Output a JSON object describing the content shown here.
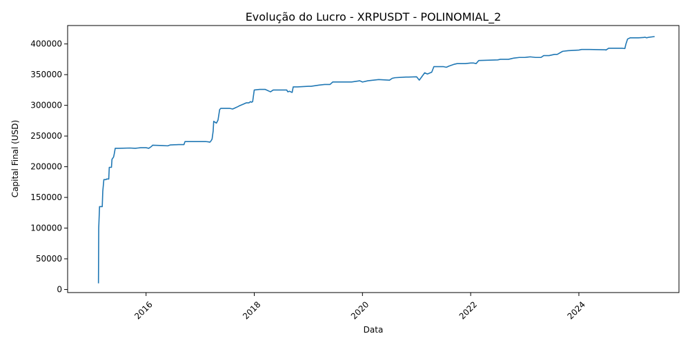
{
  "chart_data": {
    "type": "line",
    "title": "Evolução do Lucro - XRPUSDT - POLINOMIAL_2",
    "xlabel": "Data",
    "ylabel": "Capital Final (USD)",
    "xlim": [
      2014.55,
      2025.85
    ],
    "ylim": [
      -5000,
      430000
    ],
    "x_ticks": [
      2016,
      2018,
      2020,
      2022,
      2024
    ],
    "x_tick_labels": [
      "2016",
      "2018",
      "2020",
      "2022",
      "2024"
    ],
    "y_ticks": [
      0,
      50000,
      100000,
      150000,
      200000,
      250000,
      300000,
      350000,
      400000
    ],
    "y_tick_labels": [
      "0",
      "50000",
      "100000",
      "150000",
      "200000",
      "250000",
      "300000",
      "350000",
      "400000"
    ],
    "grid": false,
    "line_color": "#1f77b4",
    "series": [
      {
        "x": [
          2015.12,
          2015.125,
          2015.14,
          2015.19,
          2015.2,
          2015.22,
          2015.26,
          2015.27,
          2015.31,
          2015.32,
          2015.36,
          2015.37,
          2015.4,
          2015.41,
          2015.43,
          2015.5,
          2015.7,
          2015.8,
          2015.85,
          2015.9,
          2016.0,
          2016.05,
          2016.1,
          2016.12,
          2016.3,
          2016.4,
          2016.45,
          2016.6,
          2016.7,
          2016.72,
          2017.0,
          2017.1,
          2017.15,
          2017.18,
          2017.2,
          2017.22,
          2017.24,
          2017.25,
          2017.3,
          2017.33,
          2017.36,
          2017.38,
          2017.45,
          2017.55,
          2017.6,
          2017.65,
          2017.7,
          2017.72,
          2017.8,
          2017.85,
          2017.9,
          2017.93,
          2017.95,
          2017.97,
          2018.0,
          2018.1,
          2018.2,
          2018.3,
          2018.35,
          2018.4,
          2018.6,
          2018.62,
          2018.65,
          2018.7,
          2018.72,
          2018.76,
          2018.8,
          2019.0,
          2019.05,
          2019.2,
          2019.3,
          2019.4,
          2019.45,
          2019.8,
          2019.95,
          2020.0,
          2020.1,
          2020.2,
          2020.3,
          2020.5,
          2020.55,
          2020.6,
          2020.8,
          2020.85,
          2021.0,
          2021.05,
          2021.1,
          2021.15,
          2021.2,
          2021.28,
          2021.32,
          2021.5,
          2021.55,
          2021.6,
          2021.7,
          2021.75,
          2021.9,
          2022.0,
          2022.05,
          2022.1,
          2022.15,
          2022.5,
          2022.55,
          2022.7,
          2022.75,
          2022.8,
          2022.9,
          2023.0,
          2023.05,
          2023.1,
          2023.2,
          2023.3,
          2023.35,
          2023.45,
          2023.5,
          2023.55,
          2023.6,
          2023.7,
          2023.8,
          2024.0,
          2024.05,
          2024.2,
          2024.5,
          2024.5,
          2024.55,
          2024.6,
          2024.8,
          2024.85,
          2024.87,
          2024.9,
          2024.95,
          2025.1,
          2025.2,
          2025.22,
          2025.25,
          2025.3,
          2025.4
        ],
        "y": [
          10000,
          100000,
          135000,
          135000,
          160000,
          179000,
          179000,
          180000,
          180000,
          199000,
          199000,
          212000,
          216000,
          220000,
          230000,
          230000,
          230500,
          230000,
          230500,
          231000,
          231000,
          230000,
          233000,
          235000,
          234500,
          234000,
          235500,
          236000,
          236000,
          241000,
          241000,
          241000,
          240500,
          240000,
          242000,
          245000,
          258000,
          274000,
          271000,
          276000,
          293000,
          295000,
          295000,
          295000,
          294000,
          296000,
          298000,
          299000,
          302000,
          304000,
          304000,
          306000,
          305000,
          306000,
          325000,
          326000,
          326000,
          322000,
          325000,
          325000,
          325000,
          322000,
          323000,
          321000,
          330000,
          330000,
          330000,
          331000,
          331000,
          333000,
          334000,
          334000,
          338000,
          338000,
          340000,
          338000,
          340000,
          341000,
          342000,
          341000,
          344000,
          345000,
          346000,
          346000,
          346500,
          341000,
          347000,
          353000,
          351000,
          354000,
          363000,
          363000,
          362000,
          364000,
          367000,
          368000,
          368000,
          369000,
          369000,
          368000,
          373000,
          374000,
          375000,
          375000,
          376000,
          377000,
          378000,
          378000,
          378500,
          379000,
          378000,
          378000,
          381000,
          381000,
          382000,
          383000,
          383000,
          388000,
          389000,
          390000,
          391000,
          391000,
          390500,
          390000,
          393000,
          393000,
          393000,
          392500,
          400000,
          408000,
          410000,
          410000,
          410500,
          411000,
          410000,
          411000,
          412000
        ]
      }
    ]
  }
}
